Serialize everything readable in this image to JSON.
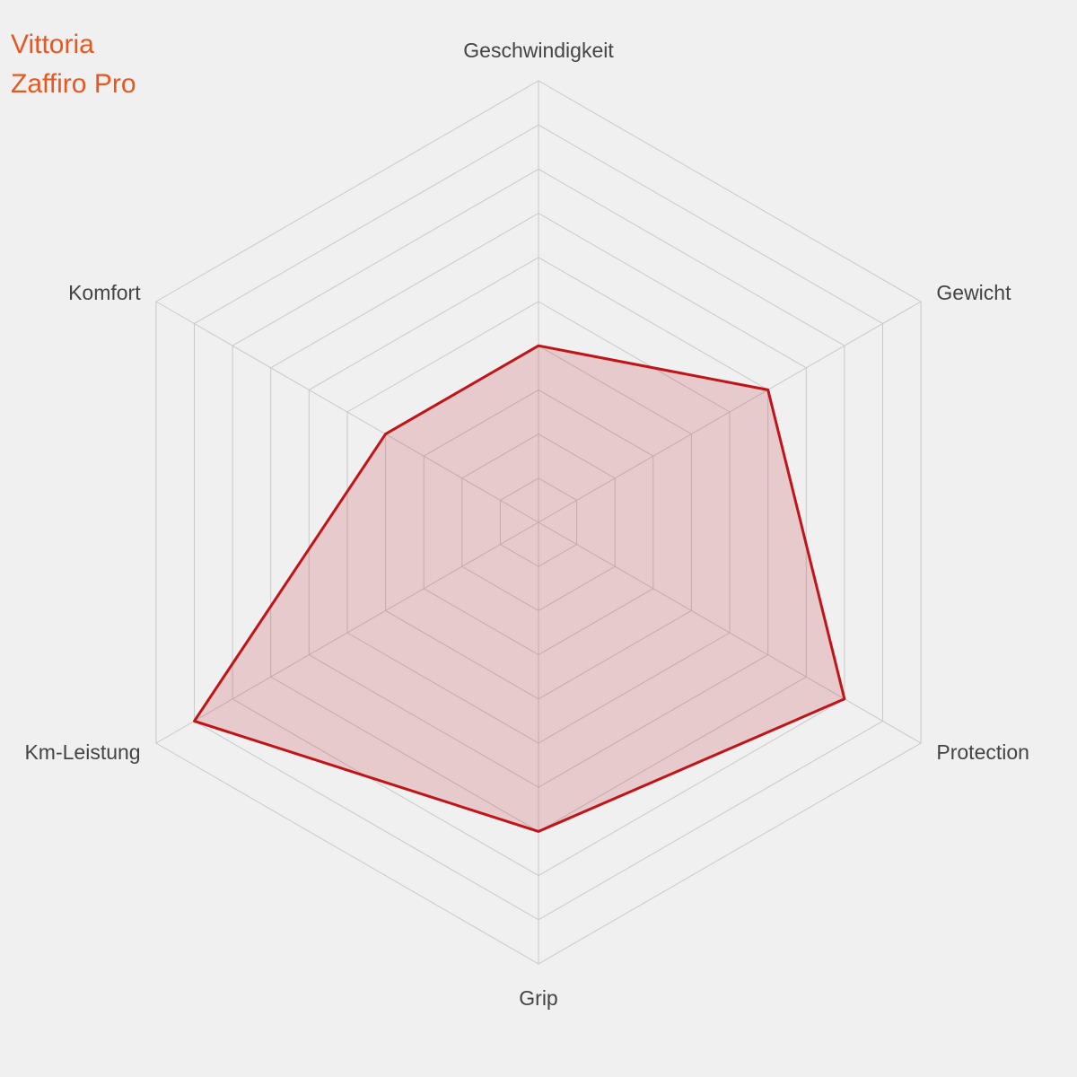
{
  "title": {
    "line1": "Vittoria",
    "line2": "Zaffiro Pro",
    "color": "#e8571f"
  },
  "chart_data": {
    "type": "radar",
    "categories": [
      "Geschwindigkeit",
      "Gewicht",
      "Protection",
      "Grip",
      "Km-Leistung",
      "Komfort"
    ],
    "values": [
      4,
      6,
      8,
      7,
      9,
      4
    ],
    "scale_max": 10,
    "rings": 10,
    "grid": true,
    "legend": "none",
    "grid_color": "#c9c9c9",
    "series_stroke": "#c01418",
    "series_fill": "rgba(192,20,24,0.17)",
    "label_color": "#444444",
    "background": "#f0f0f0"
  }
}
